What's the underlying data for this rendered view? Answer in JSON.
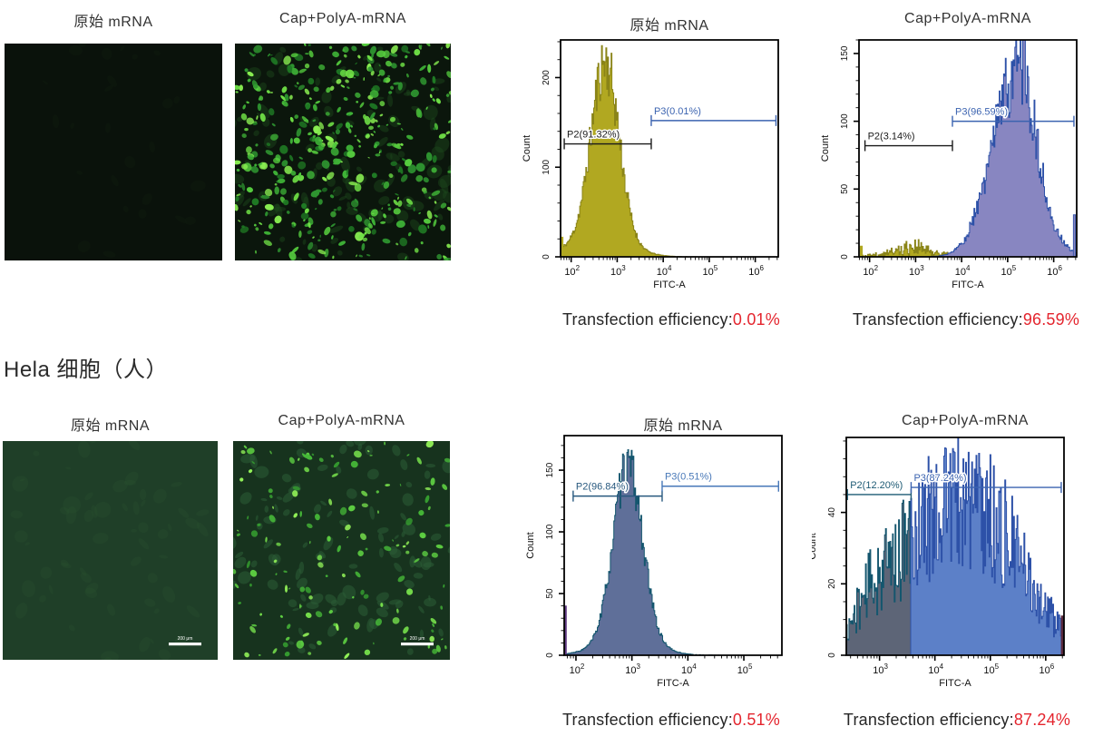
{
  "section": {
    "row2_label": "Hela 细胞（人）"
  },
  "microscopy": {
    "row1": [
      {
        "title": "原始 mRNA",
        "kind": "dark-field-no-fluorescence"
      },
      {
        "title": "Cap+PolyA-mRNA",
        "kind": "dense-green-fluorescent-cells"
      }
    ],
    "row2": [
      {
        "title": "原始 mRNA",
        "kind": "dim-green-field-no-fluorescence",
        "scale_bar": "200 μm"
      },
      {
        "title": "Cap+PolyA-mRNA",
        "kind": "sparse-green-fluorescent-cells",
        "scale_bar": "200 μm"
      }
    ]
  },
  "efficiency": {
    "row1": [
      {
        "label": "Transfection efficiency:",
        "value": "0.01%"
      },
      {
        "label": "Transfection efficiency:",
        "value": "96.59%"
      }
    ],
    "row2": [
      {
        "label": "Transfection efficiency:",
        "value": "0.51%"
      },
      {
        "label": "Transfection efficiency:",
        "value": "87.24%"
      }
    ]
  },
  "colors": {
    "efficiency_value": "#e4252e",
    "text": "#2b2b2b",
    "gate_black": "#1a1a1a",
    "gate_blue": "#3b63b0",
    "gate_teal": "#1d5a74",
    "olive_fill": "#b1a821",
    "purple_fill": "#8886c1",
    "slate_fill": "#5f6f99",
    "blue_fill": "#5c80c8",
    "fluorescence_green": "#55cc3e"
  },
  "chart_data": [
    {
      "type": "histogram",
      "title": "原始 mRNA",
      "xlabel": "FITC-A",
      "ylabel": "Count",
      "x_scale": "log10",
      "x_range_exp": [
        1.77,
        6.5
      ],
      "x_ticks_exp": [
        2,
        3,
        4,
        5,
        6
      ],
      "y_max": 242,
      "y_ticks": [
        0,
        100,
        200
      ],
      "y_minor_step": 20,
      "series": [
        {
          "name": "autofluorescence",
          "fill": "#b1a821",
          "outline": "#8a8418",
          "noise": 0.16,
          "g": [
            {
              "c": 2.74,
              "s": 0.3,
              "p": 196
            },
            {
              "c": 2.62,
              "s": 0.6,
              "p": 22
            }
          ]
        }
      ],
      "spikes": [
        {
          "exp": 1.8,
          "count": 22,
          "color": "#b1a821"
        }
      ],
      "gates": [
        {
          "name": "P2",
          "label": "P2(91.32%)",
          "percent": 91.32,
          "from_exp": 1.85,
          "to_exp": 3.74,
          "at_count": 126,
          "color": "#1a1a1a"
        },
        {
          "name": "P3",
          "label": "P3(0.01%)",
          "percent": 0.01,
          "from_exp": 3.74,
          "to_exp": 6.45,
          "at_count": 152,
          "color": "#3b63b0"
        }
      ],
      "efficiency": "0.01%"
    },
    {
      "type": "histogram",
      "title": "Cap+PolyA-mRNA",
      "xlabel": "FITC-A",
      "ylabel": "Count",
      "x_scale": "log10",
      "x_range_exp": [
        1.77,
        6.5
      ],
      "x_ticks_exp": [
        2,
        3,
        4,
        5,
        6
      ],
      "y_max": 160,
      "y_ticks": [
        0,
        50,
        100,
        150
      ],
      "y_minor_step": 10,
      "series": [
        {
          "name": "residual-negative",
          "fill": "#b1a821",
          "outline": "#8a8418",
          "noise": 0.9,
          "g": [
            {
              "c": 2.9,
              "s": 0.55,
              "p": 5
            },
            {
              "c": 2.95,
              "s": 0.15,
              "p": 3
            }
          ]
        },
        {
          "name": "transfected",
          "fill": "#8886c1",
          "outline": "#2d51a8",
          "noise": 0.22,
          "g": [
            {
              "c": 5.12,
              "s": 0.5,
              "p": 122
            },
            {
              "c": 5.35,
              "s": 0.22,
              "p": 28
            }
          ]
        }
      ],
      "spikes": [
        {
          "exp": 1.82,
          "count": 8,
          "color": "#b1a821"
        },
        {
          "exp": 6.45,
          "count": 31,
          "color": "#8886c1",
          "outline": "#2d51a8"
        }
      ],
      "gates": [
        {
          "name": "P2",
          "label": "P2(3.14%)",
          "percent": 3.14,
          "from_exp": 1.9,
          "to_exp": 3.8,
          "at_count": 82,
          "color": "#1a1a1a"
        },
        {
          "name": "P3",
          "label": "P3(96.59%)",
          "percent": 96.59,
          "from_exp": 3.8,
          "to_exp": 6.44,
          "at_count": 100,
          "color": "#3b63b0"
        }
      ],
      "efficiency": "96.59%"
    },
    {
      "type": "histogram",
      "title": "原始 mRNA",
      "xlabel": "FITC-A",
      "ylabel": "Count",
      "x_scale": "log10",
      "x_range_exp": [
        1.79,
        5.68
      ],
      "x_ticks_exp": [
        2,
        3,
        4,
        5
      ],
      "y_max": 178,
      "y_ticks": [
        0,
        50,
        100,
        150
      ],
      "y_minor_step": 10,
      "series": [
        {
          "name": "cells",
          "fill": "#5f6f99",
          "outline": "#14566e",
          "noise": 0.13,
          "g": [
            {
              "c": 2.93,
              "s": 0.26,
              "p": 141
            },
            {
              "c": 2.9,
              "s": 0.5,
              "p": 12
            }
          ]
        }
      ],
      "spikes": [
        {
          "exp": 1.81,
          "count": 40,
          "color": "#5f3b82"
        }
      ],
      "gates": [
        {
          "name": "P2",
          "label": "P2(96.84%)",
          "percent": 96.84,
          "from_exp": 1.95,
          "to_exp": 3.54,
          "at_count": 129,
          "color": "#27587e"
        },
        {
          "name": "P3",
          "label": "P3(0.51%)",
          "percent": 0.51,
          "from_exp": 3.54,
          "to_exp": 5.62,
          "at_count": 137,
          "color": "#4878b8"
        }
      ],
      "efficiency": "0.51%"
    },
    {
      "type": "histogram",
      "title": "Cap+PolyA-mRNA",
      "xlabel": "FITC-A",
      "ylabel": "Count",
      "x_scale": "log10",
      "x_range_exp": [
        2.4,
        6.33
      ],
      "x_ticks_exp": [
        3,
        4,
        5,
        6
      ],
      "y_max": 61,
      "y_ticks": [
        0,
        20,
        40
      ],
      "y_minor_step": 5,
      "series": [
        {
          "name": "cells",
          "fill": "#5c80c8",
          "outline": "#2d51a8",
          "noise": 0.5,
          "g": [
            {
              "c": 4.9,
              "s": 0.78,
              "p": 36
            },
            {
              "c": 3.9,
              "s": 0.55,
              "p": 22
            },
            {
              "c": 3.05,
              "s": 0.38,
              "p": 13
            },
            {
              "c": 2.7,
              "s": 0.25,
              "p": 5
            }
          ]
        }
      ],
      "split_exp": 3.57,
      "split_colors": [
        {
          "fill": "#5d6577",
          "outline": "#14566e"
        },
        {
          "fill": "#5c80c8",
          "outline": "#2d51a8"
        }
      ],
      "spikes": [
        {
          "exp": 6.3,
          "count": 11,
          "color": "#59293c"
        }
      ],
      "gates": [
        {
          "name": "P2",
          "label": "P2(12.20%)",
          "percent": 12.2,
          "from_exp": 2.42,
          "to_exp": 3.57,
          "at_count": 45,
          "color": "#1d5a74"
        },
        {
          "name": "P3",
          "label": "P3(87.24%)",
          "percent": 87.24,
          "from_exp": 3.57,
          "to_exp": 6.28,
          "at_count": 47,
          "color": "#3b63b0"
        }
      ],
      "efficiency": "87.24%"
    }
  ]
}
